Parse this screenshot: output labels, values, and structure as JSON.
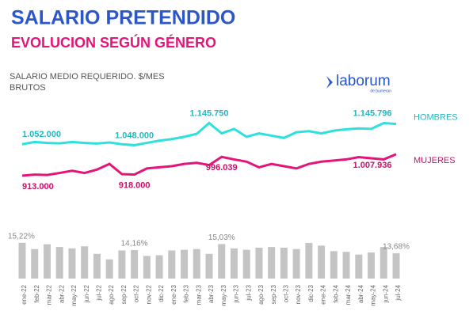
{
  "header": {
    "title": "SALARIO PRETENDIDO",
    "subtitle": "EVOLUCION SEGÚN GÉNERO"
  },
  "logo": {
    "name": "laborum",
    "tagline": "de bumeran"
  },
  "chart_data": [
    {
      "type": "line",
      "axis_label": "SALARIO MEDIO REQUERIDO. $/MES BRUTOS",
      "categories": [
        "ene-22",
        "feb-22",
        "mar-22",
        "abr-22",
        "may-22",
        "jun-22",
        "jul-22",
        "ago-22",
        "sep-22",
        "oct-22",
        "nov-22",
        "dic-22",
        "ene-23",
        "feb-23",
        "mar-23",
        "abr-23",
        "may-23",
        "jun-23",
        "jul-23",
        "ago-23",
        "sep-23",
        "oct-23",
        "nov-23",
        "dic-23",
        "ene-24",
        "feb-24",
        "mar-24",
        "abr-24",
        "may-24",
        "jun-24",
        "jul-24"
      ],
      "ylim": [
        850000,
        1200000
      ],
      "series": [
        {
          "name": "HOMBRES",
          "color": "#2ee0de",
          "values": [
            1052000,
            1062000,
            1058000,
            1056000,
            1062000,
            1058000,
            1055000,
            1060000,
            1052000,
            1048000,
            1058000,
            1068000,
            1075000,
            1085000,
            1098000,
            1145750,
            1100000,
            1120000,
            1085000,
            1100000,
            1090000,
            1080000,
            1105000,
            1110000,
            1100000,
            1112000,
            1118000,
            1122000,
            1120000,
            1145796,
            1142000
          ],
          "value_labels": [
            "1.052.000",
            null,
            null,
            null,
            null,
            null,
            null,
            null,
            null,
            "1.048.000",
            null,
            null,
            null,
            null,
            null,
            "1.145.750",
            null,
            null,
            null,
            null,
            null,
            null,
            null,
            null,
            null,
            null,
            null,
            null,
            null,
            "1.145.796",
            null
          ]
        },
        {
          "name": "MUJERES",
          "color": "#e5147a",
          "values": [
            913000,
            918000,
            916000,
            925000,
            935000,
            925000,
            940000,
            965000,
            920000,
            918000,
            945000,
            950000,
            955000,
            965000,
            970000,
            960000,
            996039,
            985000,
            975000,
            950000,
            965000,
            955000,
            945000,
            965000,
            975000,
            980000,
            985000,
            995000,
            990000,
            985000,
            1007936
          ],
          "value_labels": [
            "913.000",
            null,
            null,
            null,
            null,
            null,
            null,
            null,
            null,
            "918.000",
            null,
            null,
            null,
            null,
            null,
            null,
            "996.039",
            null,
            null,
            null,
            null,
            null,
            null,
            null,
            null,
            null,
            null,
            null,
            null,
            null,
            "1.007.936"
          ]
        }
      ]
    },
    {
      "type": "bar",
      "color": "#c4c4c4",
      "ylim": [
        10,
        16
      ],
      "values": [
        15.22,
        14.3,
        15.0,
        14.6,
        14.4,
        14.7,
        13.6,
        12.8,
        14.1,
        14.16,
        13.3,
        13.4,
        14.1,
        14.2,
        14.3,
        13.6,
        15.03,
        14.4,
        14.2,
        14.5,
        14.6,
        14.5,
        14.3,
        15.2,
        14.8,
        14.0,
        13.9,
        13.5,
        13.8,
        14.6,
        13.68
      ],
      "value_labels": [
        "15,22%",
        null,
        null,
        null,
        null,
        null,
        null,
        null,
        null,
        "14,16%",
        null,
        null,
        null,
        null,
        null,
        null,
        "15,03%",
        null,
        null,
        null,
        null,
        null,
        null,
        null,
        null,
        null,
        null,
        null,
        null,
        null,
        "13,68%"
      ]
    }
  ]
}
